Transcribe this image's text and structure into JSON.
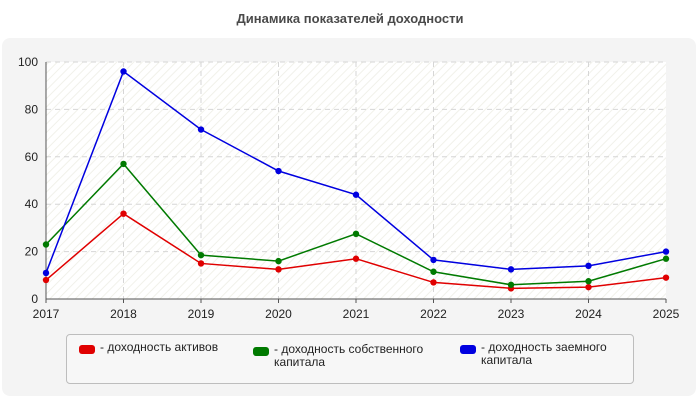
{
  "chart_data": {
    "type": "line",
    "title": "Динамика показателей доходности",
    "x": [
      "2017",
      "2018",
      "2019",
      "2020",
      "2021",
      "2022",
      "2023",
      "2024",
      "2025"
    ],
    "ylim": [
      0,
      100
    ],
    "yticks": [
      "0",
      "20",
      "40",
      "60",
      "80",
      "100"
    ],
    "grid": true,
    "legend_position": "bottom",
    "series": [
      {
        "name": "доходность активов",
        "color": "#e00000",
        "values": [
          8,
          36,
          15,
          12.5,
          17,
          7,
          4.5,
          5,
          9
        ]
      },
      {
        "name": "доходность собственного капитала",
        "color": "#007a00",
        "values": [
          23,
          57,
          18.5,
          16,
          27.5,
          11.5,
          6,
          7.5,
          17
        ]
      },
      {
        "name": "доходность заемного капитала",
        "color": "#0000e0",
        "values": [
          11,
          96,
          71.5,
          54,
          44,
          16.5,
          12.5,
          14,
          20
        ]
      }
    ]
  },
  "legend": {
    "items": [
      {
        "label": "- доходность активов"
      },
      {
        "label": "- доходность собственного капитала"
      },
      {
        "label": "- доходность заемного капитала"
      }
    ]
  }
}
